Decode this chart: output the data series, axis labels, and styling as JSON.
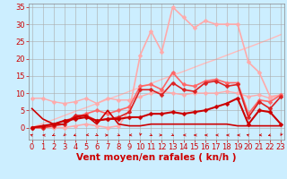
{
  "bg_color": "#cceeff",
  "grid_color": "#aaaaaa",
  "xlabel": "Vent moyen/en rafales ( kn/h )",
  "yticks": [
    0,
    5,
    10,
    15,
    20,
    25,
    30,
    35
  ],
  "xticks": [
    0,
    1,
    2,
    3,
    4,
    5,
    6,
    7,
    8,
    9,
    10,
    11,
    12,
    13,
    14,
    15,
    16,
    17,
    18,
    19,
    20,
    21,
    22,
    23
  ],
  "xlim": [
    -0.3,
    23.3
  ],
  "ylim": [
    0,
    36
  ],
  "series": [
    {
      "x": [
        0,
        1,
        2,
        3,
        4,
        5,
        6,
        7,
        8,
        9,
        10,
        11,
        12,
        13,
        14,
        15,
        16,
        17,
        18,
        19,
        20,
        21,
        22,
        23
      ],
      "y": [
        0,
        1.2,
        2.3,
        3.5,
        4.7,
        5.8,
        7.0,
        8.2,
        9.3,
        10.5,
        11.7,
        12.8,
        14.0,
        15.2,
        16.3,
        17.5,
        18.7,
        19.8,
        21.0,
        22.2,
        23.3,
        24.5,
        25.7,
        27.0
      ],
      "color": "#ffbbbb",
      "lw": 1.0,
      "marker": null,
      "zorder": 1
    },
    {
      "x": [
        0,
        1,
        2,
        3,
        4,
        5,
        6,
        7,
        8,
        9,
        10,
        11,
        12,
        13,
        14,
        15,
        16,
        17,
        18,
        19,
        20,
        21,
        22,
        23
      ],
      "y": [
        8.5,
        8.5,
        7.5,
        7.0,
        7.5,
        8.5,
        7.0,
        8.5,
        8.0,
        8.0,
        9.0,
        10.0,
        10.5,
        10.0,
        9.5,
        10.0,
        10.0,
        10.0,
        10.5,
        10.0,
        9.0,
        9.5,
        8.5,
        9.5
      ],
      "color": "#ffaaaa",
      "lw": 1.0,
      "marker": "D",
      "markersize": 2.5,
      "zorder": 2
    },
    {
      "x": [
        0,
        1,
        2,
        3,
        4,
        5,
        6,
        7,
        8,
        9,
        10,
        11,
        12,
        13,
        14,
        15,
        16,
        17,
        18,
        19,
        20,
        21,
        22,
        23
      ],
      "y": [
        0,
        0,
        0,
        0,
        0.5,
        1,
        0.5,
        0,
        0.5,
        5,
        21,
        28,
        22,
        35,
        32,
        29,
        31,
        30,
        30,
        30,
        19,
        16,
        9,
        9.5
      ],
      "color": "#ffaaaa",
      "lw": 1.2,
      "marker": "D",
      "markersize": 2.5,
      "zorder": 2
    },
    {
      "x": [
        0,
        1,
        2,
        3,
        4,
        5,
        6,
        7,
        8,
        9,
        10,
        11,
        12,
        13,
        14,
        15,
        16,
        17,
        18,
        19,
        20,
        21,
        22,
        23
      ],
      "y": [
        0,
        0,
        1,
        2,
        3,
        4,
        5,
        4,
        5,
        6,
        12,
        12.5,
        11,
        16,
        12.5,
        12,
        13.5,
        14,
        13,
        13,
        4,
        8,
        7.5,
        9.5
      ],
      "color": "#ff6666",
      "lw": 1.2,
      "marker": "D",
      "markersize": 2.5,
      "zorder": 3
    },
    {
      "x": [
        0,
        1,
        2,
        3,
        4,
        5,
        6,
        7,
        8,
        9,
        10,
        11,
        12,
        13,
        14,
        15,
        16,
        17,
        18,
        19,
        20,
        21,
        22,
        23
      ],
      "y": [
        0,
        0,
        0.5,
        1,
        3.5,
        3.5,
        2,
        2.5,
        3,
        4.5,
        11,
        11,
        9.5,
        13,
        11,
        10.5,
        13,
        13.5,
        12,
        12.5,
        3,
        7.5,
        5.5,
        9
      ],
      "color": "#dd2222",
      "lw": 1.2,
      "marker": "D",
      "markersize": 2.5,
      "zorder": 3
    },
    {
      "x": [
        0,
        1,
        2,
        3,
        4,
        5,
        6,
        7,
        8,
        9,
        10,
        11,
        12,
        13,
        14,
        15,
        16,
        17,
        18,
        19,
        20,
        21,
        22,
        23
      ],
      "y": [
        0,
        0.5,
        1,
        2,
        2.5,
        3,
        2,
        2.5,
        2.5,
        3,
        3,
        4,
        4,
        4.5,
        4,
        4.5,
        5,
        6,
        7,
        8.5,
        1,
        5,
        4.5,
        1
      ],
      "color": "#cc0000",
      "lw": 1.5,
      "marker": "D",
      "markersize": 2.5,
      "zorder": 4
    },
    {
      "x": [
        0,
        1,
        2,
        3,
        4,
        5,
        6,
        7,
        8,
        9,
        10,
        11,
        12,
        13,
        14,
        15,
        16,
        17,
        18,
        19,
        20,
        21,
        22,
        23
      ],
      "y": [
        5.5,
        2.5,
        1,
        1,
        3,
        3.5,
        1,
        5,
        1,
        0.5,
        0.5,
        1,
        1,
        1,
        1,
        1,
        1,
        1,
        1,
        0.5,
        0.5,
        0.5,
        0.5,
        0.5
      ],
      "color": "#cc0000",
      "lw": 1.2,
      "marker": null,
      "zorder": 3
    }
  ],
  "wind_angles": [
    315,
    280,
    210,
    200,
    225,
    250,
    150,
    90,
    140,
    260,
    185,
    145,
    95,
    145,
    265,
    270,
    270,
    265,
    270,
    270,
    310,
    260,
    230,
    190
  ],
  "font_color": "#cc0000",
  "tick_fontsize": 6,
  "label_fontsize": 7.5
}
